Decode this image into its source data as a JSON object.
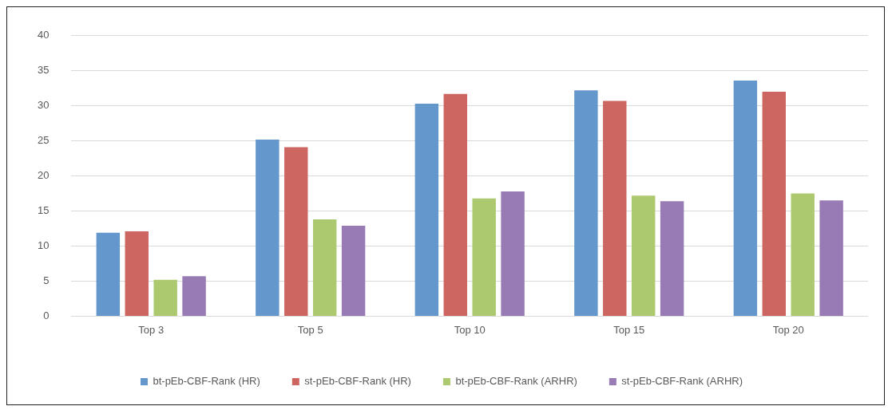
{
  "chart_data": {
    "type": "bar",
    "categories": [
      "Top 3",
      "Top 5",
      "Top 10",
      "Top 15",
      "Top 20"
    ],
    "series": [
      {
        "name": "bt-pEb-CBF-Rank (HR)",
        "color": "#6497cb",
        "values": [
          11.9,
          25.2,
          30.3,
          32.2,
          33.6
        ]
      },
      {
        "name": "st-pEb-CBF-Rank (HR)",
        "color": "#cd6661",
        "values": [
          12.1,
          24.1,
          31.7,
          30.7,
          32.0
        ]
      },
      {
        "name": "bt-pEb-CBF-Rank (ARHR)",
        "color": "#adc96f",
        "values": [
          5.2,
          13.8,
          16.8,
          17.2,
          17.5
        ]
      },
      {
        "name": "st-pEb-CBF-Rank (ARHR)",
        "color": "#987bb4",
        "values": [
          5.7,
          12.9,
          17.8,
          16.4,
          16.5
        ]
      }
    ],
    "ylim": [
      0,
      40
    ],
    "yticks": [
      0,
      5,
      10,
      15,
      20,
      25,
      30,
      35,
      40
    ],
    "grid": "y",
    "legend": "bottom"
  }
}
